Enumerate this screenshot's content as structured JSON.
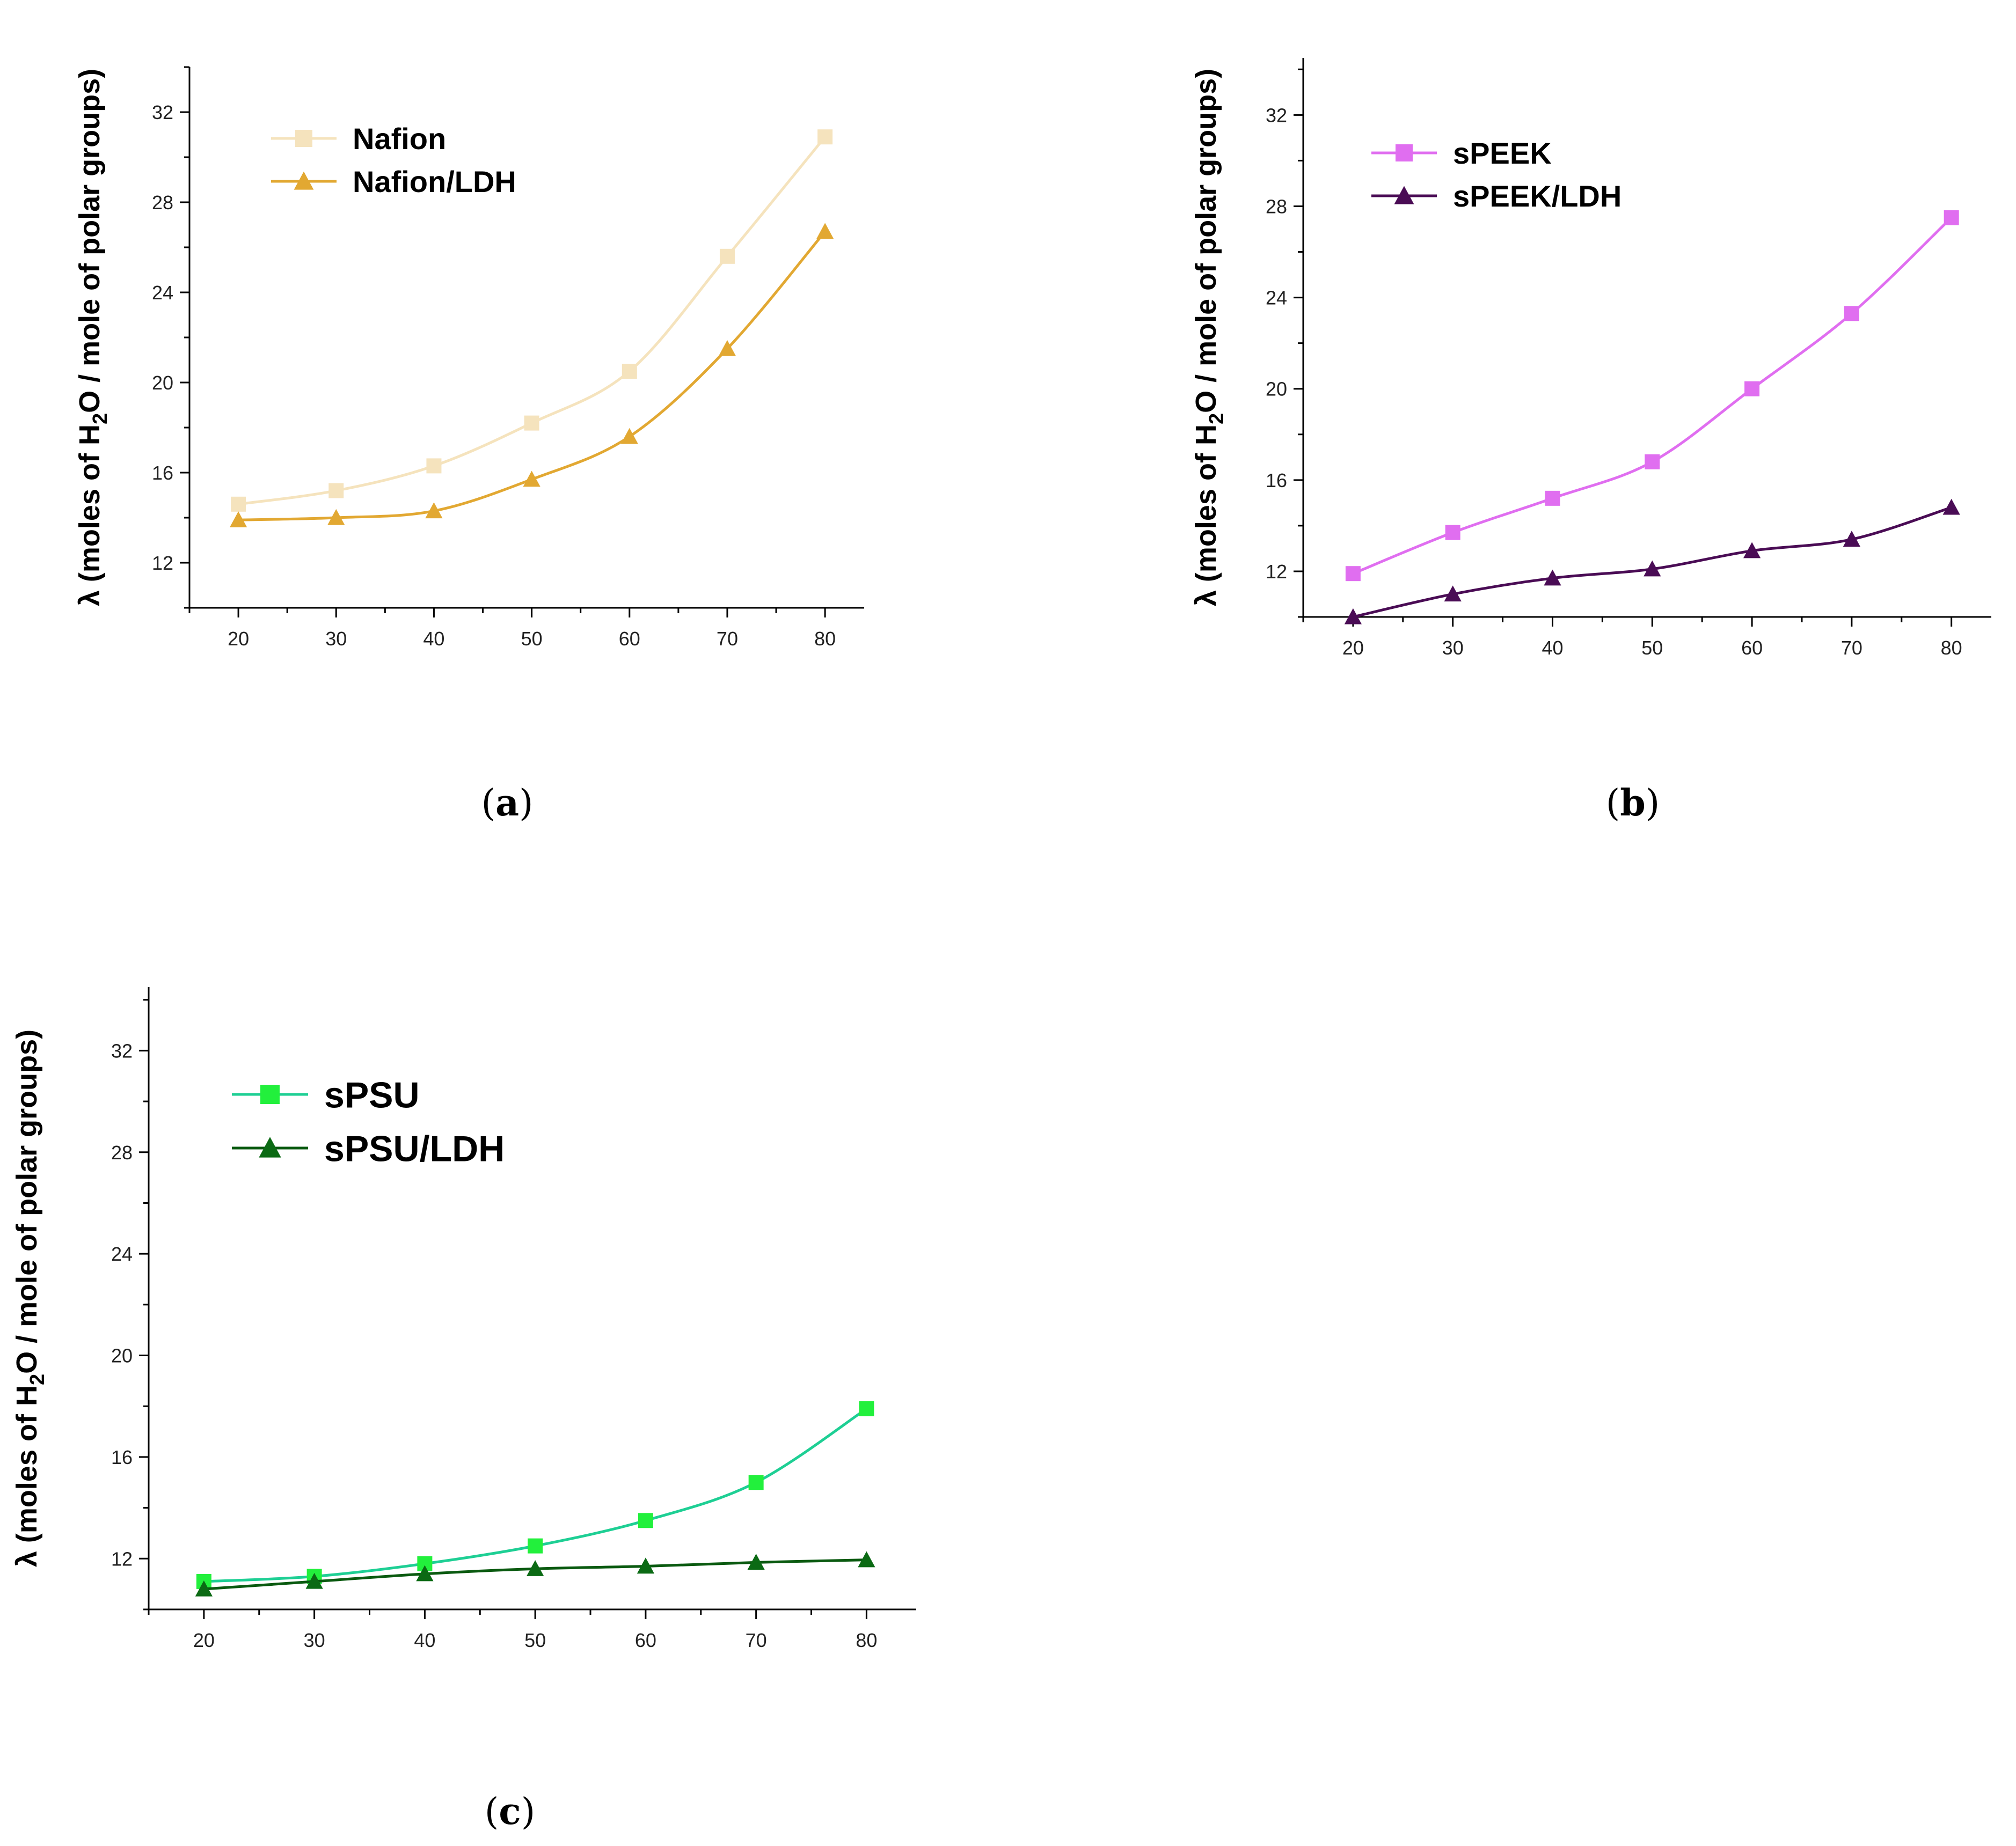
{
  "chart_data": [
    {
      "panel": "a",
      "type": "line",
      "ylabel": "λ (moles of H2O / mole of polar groups)",
      "ylabel_parts": {
        "before": "λ (moles of H",
        "sub": "2",
        "after": "O / mole of polar groups)"
      },
      "x": [
        20,
        30,
        40,
        50,
        60,
        70,
        80
      ],
      "xticks": [
        20,
        30,
        40,
        50,
        60,
        70,
        80
      ],
      "yticks": [
        12,
        16,
        20,
        24,
        28,
        32
      ],
      "xlim": [
        15,
        84
      ],
      "ylim": [
        10,
        34
      ],
      "series": [
        {
          "name": "Nafion",
          "marker": "square",
          "color": "#f5e3bd",
          "values": [
            14.6,
            15.2,
            16.3,
            18.2,
            20.5,
            25.6,
            30.9
          ]
        },
        {
          "name": "Nafion/LDH",
          "marker": "triangle",
          "color": "#e2a832",
          "values": [
            13.9,
            14.0,
            14.3,
            15.7,
            17.6,
            21.5,
            26.7
          ]
        }
      ]
    },
    {
      "panel": "b",
      "type": "line",
      "ylabel": "λ (moles of H2O / mole of polar groups)",
      "ylabel_parts": {
        "before": "λ (moles of H",
        "sub": "2",
        "after": "O / mole of polar groups)"
      },
      "x": [
        20,
        30,
        40,
        50,
        60,
        70,
        80
      ],
      "xticks": [
        20,
        30,
        40,
        50,
        60,
        70,
        80
      ],
      "yticks": [
        12,
        16,
        20,
        24,
        28,
        32
      ],
      "xlim": [
        15,
        84
      ],
      "ylim": [
        10,
        34.5
      ],
      "series": [
        {
          "name": "sPEEK",
          "marker": "square",
          "color": "#e06ef0",
          "values": [
            11.9,
            13.7,
            15.2,
            16.8,
            20.0,
            23.3,
            27.5
          ]
        },
        {
          "name": "sPEEK/LDH",
          "marker": "triangle",
          "color": "#4a0c55",
          "values": [
            10.0,
            11.0,
            11.7,
            12.1,
            12.9,
            13.4,
            14.8
          ]
        }
      ]
    },
    {
      "panel": "c",
      "type": "line",
      "ylabel": "λ (moles of H2O / mole of polar groups)",
      "ylabel_parts": {
        "before": "λ (moles of H",
        "sub": "2",
        "after": "O / mole of polar groups)"
      },
      "x": [
        20,
        30,
        40,
        50,
        60,
        70,
        80
      ],
      "xticks": [
        20,
        30,
        40,
        50,
        60,
        70,
        80
      ],
      "yticks": [
        12,
        16,
        20,
        24,
        28,
        32
      ],
      "xlim": [
        15,
        84.5
      ],
      "ylim": [
        10,
        34.5
      ],
      "series": [
        {
          "name": "sPSU",
          "marker": "square",
          "color": "#1ecf94",
          "marker_color": "#22f03c",
          "values": [
            11.1,
            11.3,
            11.8,
            12.5,
            13.5,
            15.0,
            17.9
          ]
        },
        {
          "name": "sPSU/LDH",
          "marker": "triangle",
          "color": "#0a5a10",
          "marker_color": "#0b6a14",
          "values": [
            10.8,
            11.1,
            11.4,
            11.6,
            11.7,
            11.85,
            11.95
          ]
        }
      ]
    }
  ],
  "panel_labels": [
    "a",
    "b",
    "c"
  ]
}
